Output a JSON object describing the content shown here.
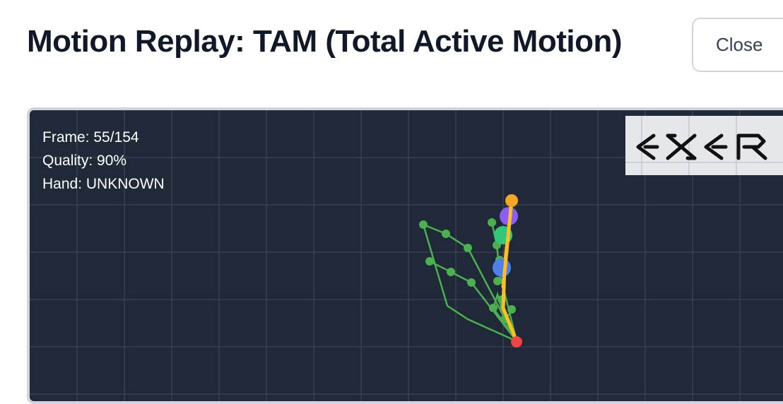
{
  "dialog": {
    "title": "Motion Replay: TAM (Total Active Motion)",
    "close_label": "Close"
  },
  "overlay": {
    "frame": "Frame: 55/154",
    "quality": "Quality: 90%",
    "hand": "Hand: UNKNOWN"
  },
  "logo": {
    "text": "EXER"
  },
  "colors": {
    "canvas_bg": "#1f2937",
    "grid": "#374151",
    "skeleton": "#4caf50",
    "highlight_line": "#fbbf24",
    "tip_marker": "#f5a623",
    "joint_purple": "#8b5cf6",
    "joint_green": "#34c77b",
    "joint_blue": "#4f7fe8",
    "wrist_red": "#ef4444"
  }
}
